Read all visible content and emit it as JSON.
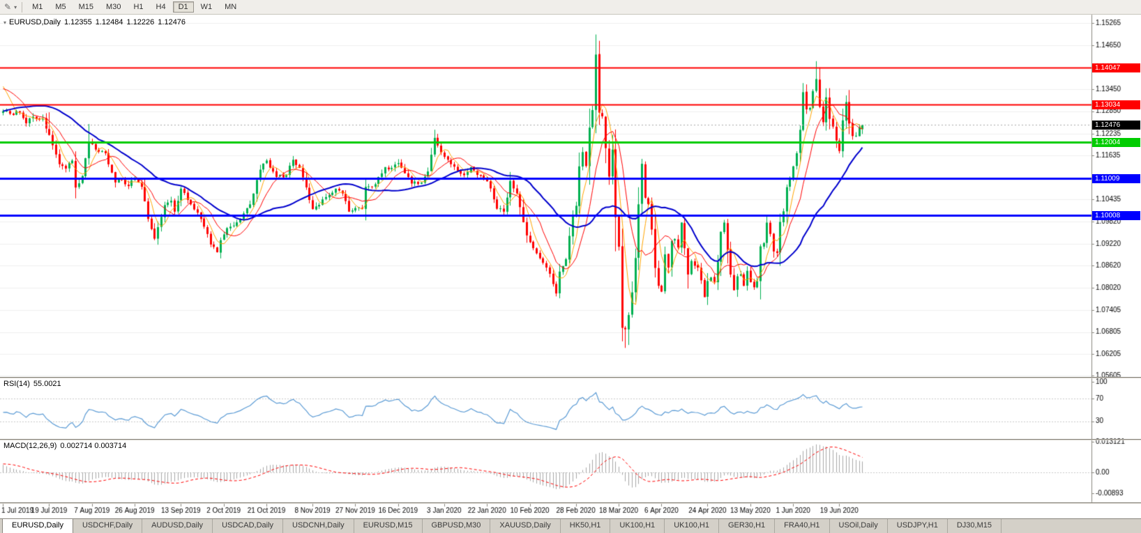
{
  "toolbar": {
    "timeframes": [
      {
        "label": "M1",
        "active": false
      },
      {
        "label": "M5",
        "active": false
      },
      {
        "label": "M15",
        "active": false
      },
      {
        "label": "M30",
        "active": false
      },
      {
        "label": "H1",
        "active": false
      },
      {
        "label": "H4",
        "active": false
      },
      {
        "label": "D1",
        "active": true
      },
      {
        "label": "W1",
        "active": false
      },
      {
        "label": "MN",
        "active": false
      }
    ]
  },
  "chart_header": {
    "symbol_period": "EURUSD,Daily",
    "open": "1.12355",
    "high": "1.12484",
    "low": "1.12226",
    "close": "1.12476"
  },
  "chart_data": {
    "type": "candlestick",
    "symbol": "EURUSD",
    "timeframe": "Daily",
    "bar_count": 262,
    "y_axis_ticks": [
      1.15265,
      1.1465,
      1.1405,
      1.1345,
      1.1285,
      1.12235,
      1.11635,
      1.11035,
      1.10435,
      1.0982,
      1.0922,
      1.0862,
      1.0802,
      1.07405,
      1.06805,
      1.06205,
      1.05605
    ],
    "x_axis_labels": [
      {
        "label": "1 Jul 2019",
        "index": 0
      },
      {
        "label": "19 Jul 2019",
        "index": 14
      },
      {
        "label": "7 Aug 2019",
        "index": 27
      },
      {
        "label": "26 Aug 2019",
        "index": 40
      },
      {
        "label": "13 Sep 2019",
        "index": 54
      },
      {
        "label": "2 Oct 2019",
        "index": 67
      },
      {
        "label": "21 Oct 2019",
        "index": 80
      },
      {
        "label": "8 Nov 2019",
        "index": 94
      },
      {
        "label": "27 Nov 2019",
        "index": 107
      },
      {
        "label": "16 Dec 2019",
        "index": 120
      },
      {
        "label": "3 Jan 2020",
        "index": 134
      },
      {
        "label": "22 Jan 2020",
        "index": 147
      },
      {
        "label": "10 Feb 2020",
        "index": 160
      },
      {
        "label": "28 Feb 2020",
        "index": 174
      },
      {
        "label": "18 Mar 2020",
        "index": 187
      },
      {
        "label": "6 Apr 2020",
        "index": 200
      },
      {
        "label": "24 Apr 2020",
        "index": 214
      },
      {
        "label": "13 May 2020",
        "index": 227
      },
      {
        "label": "1 Jun 2020",
        "index": 240
      },
      {
        "label": "19 Jun 2020",
        "index": 254
      }
    ],
    "levels": [
      {
        "value": 1.14047,
        "label": "1.14047",
        "color": "#FF0000",
        "width": 2
      },
      {
        "value": 1.13034,
        "label": "1.13034",
        "color": "#FF0000",
        "width": 2
      },
      {
        "value": 1.12004,
        "label": "1.12004",
        "color": "#00CC00",
        "width": 3
      },
      {
        "value": 1.11009,
        "label": "1.11009",
        "color": "#0000FF",
        "width": 3
      },
      {
        "value": 1.10008,
        "label": "1.10008",
        "color": "#0000FF",
        "width": 3
      }
    ],
    "current_price": {
      "value": 1.12476,
      "label": "1.12476",
      "color": "#000000"
    },
    "last_candle": {
      "open": 1.12355,
      "high": 1.12484,
      "low": 1.12226,
      "close": 1.12476
    },
    "colors": {
      "bull": "#00B050",
      "bear": "#FF0000",
      "ma_fast": "#FFA500",
      "ma_mid": "#FF0000",
      "ma_slow": "#0000CD"
    },
    "moving_averages": [
      {
        "period": 5,
        "color": "#FFA500",
        "width": 1
      },
      {
        "period": 10,
        "color": "#FF0000",
        "width": 1
      },
      {
        "period": 30,
        "color": "#0000CD",
        "width": 2
      }
    ],
    "pre_anchors": [
      [
        -60,
        1.1175
      ],
      [
        -45,
        1.1145
      ],
      [
        -30,
        1.1205
      ],
      [
        -12,
        1.129
      ],
      [
        -5,
        1.1365
      ],
      [
        -1,
        1.137
      ]
    ],
    "price_path_anchors": [
      [
        0,
        1.1285
      ],
      [
        2,
        1.1278
      ],
      [
        5,
        1.1282
      ],
      [
        7,
        1.1252
      ],
      [
        9,
        1.127
      ],
      [
        12,
        1.1265
      ],
      [
        14,
        1.122
      ],
      [
        17,
        1.114
      ],
      [
        19,
        1.1128
      ],
      [
        21,
        1.115
      ],
      [
        22,
        1.1076
      ],
      [
        24,
        1.1108
      ],
      [
        26,
        1.12
      ],
      [
        28,
        1.118
      ],
      [
        31,
        1.117
      ],
      [
        34,
        1.109
      ],
      [
        36,
        1.1098
      ],
      [
        38,
        1.108
      ],
      [
        40,
        1.1101
      ],
      [
        42,
        1.1078
      ],
      [
        44,
        1.099
      ],
      [
        46,
        1.0936
      ],
      [
        49,
        1.1028
      ],
      [
        51,
        1.104
      ],
      [
        52,
        1.101
      ],
      [
        54,
        1.1073
      ],
      [
        57,
        1.103
      ],
      [
        60,
        1.099
      ],
      [
        63,
        1.092
      ],
      [
        65,
        1.0899
      ],
      [
        66,
        1.0932
      ],
      [
        68,
        1.0965
      ],
      [
        70,
        1.0972
      ],
      [
        73,
        1.1005
      ],
      [
        75,
        1.103
      ],
      [
        78,
        1.1125
      ],
      [
        80,
        1.115
      ],
      [
        83,
        1.1105
      ],
      [
        86,
        1.111
      ],
      [
        88,
        1.1152
      ],
      [
        90,
        1.113
      ],
      [
        94,
        1.1017
      ],
      [
        98,
        1.105
      ],
      [
        101,
        1.1073
      ],
      [
        103,
        1.106
      ],
      [
        105,
        1.101
      ],
      [
        107,
        1.102
      ],
      [
        109,
        1.1018
      ],
      [
        110,
        1.1078
      ],
      [
        113,
        1.1085
      ],
      [
        116,
        1.1132
      ],
      [
        118,
        1.113
      ],
      [
        120,
        1.1143
      ],
      [
        122,
        1.1115
      ],
      [
        124,
        1.1087
      ],
      [
        127,
        1.109
      ],
      [
        129,
        1.112
      ],
      [
        131,
        1.1212
      ],
      [
        134,
        1.116
      ],
      [
        136,
        1.114
      ],
      [
        138,
        1.1122
      ],
      [
        140,
        1.111
      ],
      [
        142,
        1.1132
      ],
      [
        145,
        1.1108
      ],
      [
        147,
        1.1093
      ],
      [
        150,
        1.1018
      ],
      [
        152,
        1.101
      ],
      [
        154,
        1.1094
      ],
      [
        156,
        1.106
      ],
      [
        159,
        1.0945
      ],
      [
        161,
        1.091
      ],
      [
        164,
        1.087
      ],
      [
        166,
        1.084
      ],
      [
        168,
        1.0786
      ],
      [
        169,
        1.0846
      ],
      [
        171,
        1.088
      ],
      [
        173,
        1.0999
      ],
      [
        174,
        1.1026
      ],
      [
        175,
        1.1134
      ],
      [
        176,
        1.1173
      ],
      [
        177,
        1.1135
      ],
      [
        178,
        1.124
      ],
      [
        179,
        1.1288
      ],
      [
        180,
        1.144
      ],
      [
        181,
        1.1281
      ],
      [
        182,
        1.1271
      ],
      [
        183,
        1.1184
      ],
      [
        184,
        1.1106
      ],
      [
        185,
        1.118
      ],
      [
        186,
        1.0995
      ],
      [
        187,
        1.0914
      ],
      [
        188,
        1.0692
      ],
      [
        189,
        1.0688
      ],
      [
        190,
        1.0727
      ],
      [
        191,
        1.0789
      ],
      [
        192,
        1.0883
      ],
      [
        193,
        1.103
      ],
      [
        194,
        1.1141
      ],
      [
        195,
        1.1048
      ],
      [
        196,
        1.1031
      ],
      [
        197,
        1.0961
      ],
      [
        198,
        1.0856
      ],
      [
        199,
        1.0807
      ],
      [
        200,
        1.0791
      ],
      [
        201,
        1.0893
      ],
      [
        202,
        1.0857
      ],
      [
        203,
        1.093
      ],
      [
        204,
        1.0935
      ],
      [
        205,
        1.0912
      ],
      [
        206,
        1.098
      ],
      [
        207,
        1.091
      ],
      [
        208,
        1.0838
      ],
      [
        209,
        1.0875
      ],
      [
        210,
        1.0862
      ],
      [
        211,
        1.0857
      ],
      [
        212,
        1.0822
      ],
      [
        213,
        1.0776
      ],
      [
        214,
        1.082
      ],
      [
        215,
        1.083
      ],
      [
        216,
        1.0818
      ],
      [
        217,
        1.0872
      ],
      [
        218,
        1.0955
      ],
      [
        219,
        1.098
      ],
      [
        220,
        1.0905
      ],
      [
        221,
        1.0838
      ],
      [
        222,
        1.0795
      ],
      [
        223,
        1.0833
      ],
      [
        224,
        1.0839
      ],
      [
        225,
        1.0807
      ],
      [
        226,
        1.0848
      ],
      [
        227,
        1.0817
      ],
      [
        228,
        1.0803
      ],
      [
        229,
        1.082
      ],
      [
        230,
        1.0915
      ],
      [
        231,
        1.0924
      ],
      [
        232,
        1.098
      ],
      [
        233,
        1.0949
      ],
      [
        234,
        1.0901
      ],
      [
        235,
        1.0897
      ],
      [
        236,
        1.0982
      ],
      [
        237,
        1.1011
      ],
      [
        238,
        1.1077
      ],
      [
        239,
        1.1101
      ],
      [
        240,
        1.1134
      ],
      [
        241,
        1.117
      ],
      [
        242,
        1.1234
      ],
      [
        243,
        1.1337
      ],
      [
        244,
        1.129
      ],
      [
        245,
        1.1294
      ],
      [
        246,
        1.134
      ],
      [
        247,
        1.1373
      ],
      [
        248,
        1.1297
      ],
      [
        249,
        1.1255
      ],
      [
        250,
        1.1323
      ],
      [
        251,
        1.1264
      ],
      [
        252,
        1.1243
      ],
      [
        253,
        1.1205
      ],
      [
        254,
        1.1176
      ],
      [
        255,
        1.126
      ],
      [
        256,
        1.131
      ],
      [
        257,
        1.1251
      ],
      [
        258,
        1.1217
      ],
      [
        259,
        1.1218
      ],
      [
        260,
        1.1241
      ],
      [
        261,
        1.12476
      ]
    ],
    "wick_overrides": {
      "14": {
        "high": 1.1282
      },
      "26": {
        "high": 1.125
      },
      "168": {
        "low": 1.0778
      },
      "180": {
        "high": 1.1495
      },
      "188": {
        "low": 1.0655
      },
      "189": {
        "low": 1.0637
      },
      "190": {
        "low": 1.0645
      },
      "243": {
        "high": 1.1362
      },
      "247": {
        "high": 1.1422
      }
    },
    "rsi": {
      "label": "RSI(14)",
      "value": "55.0021",
      "period": 14,
      "color": "#5B9BD5",
      "levels": [
        70,
        30
      ],
      "axis_labels": [
        {
          "label": "100",
          "value": 100
        },
        {
          "label": "70",
          "value": 70
        },
        {
          "label": "30",
          "value": 30
        }
      ]
    },
    "macd": {
      "label": "MACD(12,26,9)",
      "values": "0.002714 0.003714",
      "fast": 12,
      "slow": 26,
      "signal": 9,
      "histogram_color": "#A8A8A8",
      "signal_color": "#FF0000",
      "axis_labels": [
        {
          "label": "0.013121",
          "value": 0.013121
        },
        {
          "label": "0.00",
          "value": 0
        },
        {
          "label": "-0.00893",
          "value": -0.00893
        }
      ]
    }
  },
  "tabs": {
    "items": [
      {
        "label": "EURUSD,Daily",
        "active": true
      },
      {
        "label": "USDCHF,Daily",
        "active": false
      },
      {
        "label": "AUDUSD,Daily",
        "active": false
      },
      {
        "label": "USDCAD,Daily",
        "active": false
      },
      {
        "label": "USDCNH,Daily",
        "active": false
      },
      {
        "label": "EURUSD,M15",
        "active": false
      },
      {
        "label": "GBPUSD,M30",
        "active": false
      },
      {
        "label": "XAUUSD,Daily",
        "active": false
      },
      {
        "label": "HK50,H1",
        "active": false
      },
      {
        "label": "UK100,H1",
        "active": false
      },
      {
        "label": "UK100,H1",
        "active": false
      },
      {
        "label": "GER30,H1",
        "active": false
      },
      {
        "label": "FRA40,H1",
        "active": false
      },
      {
        "label": "USOil,Daily",
        "active": false
      },
      {
        "label": "USDJPY,H1",
        "active": false
      },
      {
        "label": "DJ30,M15",
        "active": false
      }
    ]
  }
}
